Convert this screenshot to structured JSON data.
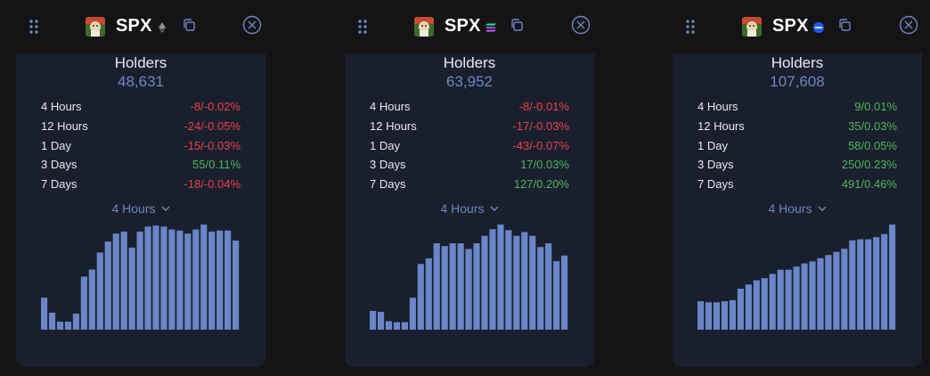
{
  "theme": {
    "accent": "#6e87c2",
    "bar_color": "#6a85c8",
    "negative": "#e8404a",
    "positive": "#49b85a",
    "card_bg": "#1a1f2d"
  },
  "panels": [
    {
      "token": "SPX",
      "chain_icon": "ethereum-icon",
      "title": "Holders",
      "count": "48,631",
      "stats": [
        {
          "label": "4 Hours",
          "value": "-8/-0.02%",
          "trend": "neg"
        },
        {
          "label": "12 Hours",
          "value": "-24/-0.05%",
          "trend": "neg"
        },
        {
          "label": "1 Day",
          "value": "-15/-0.03%",
          "trend": "neg"
        },
        {
          "label": "3 Days",
          "value": "55/0.11%",
          "trend": "pos"
        },
        {
          "label": "7 Days",
          "value": "-18/-0.04%",
          "trend": "neg"
        }
      ],
      "period": "4 Hours"
    },
    {
      "token": "SPX",
      "chain_icon": "solana-icon",
      "title": "Holders",
      "count": "63,952",
      "stats": [
        {
          "label": "4 Hours",
          "value": "-8/-0.01%",
          "trend": "neg"
        },
        {
          "label": "12 Hours",
          "value": "-17/-0.03%",
          "trend": "neg"
        },
        {
          "label": "1 Day",
          "value": "-43/-0.07%",
          "trend": "neg"
        },
        {
          "label": "3 Days",
          "value": "17/0.03%",
          "trend": "pos"
        },
        {
          "label": "7 Days",
          "value": "127/0.20%",
          "trend": "pos"
        }
      ],
      "period": "4 Hours"
    },
    {
      "token": "SPX",
      "chain_icon": "base-icon",
      "title": "Holders",
      "count": "107,608",
      "stats": [
        {
          "label": "4 Hours",
          "value": "9/0.01%",
          "trend": "pos"
        },
        {
          "label": "12 Hours",
          "value": "35/0.03%",
          "trend": "pos"
        },
        {
          "label": "1 Day",
          "value": "58/0.05%",
          "trend": "pos"
        },
        {
          "label": "3 Days",
          "value": "250/0.23%",
          "trend": "pos"
        },
        {
          "label": "7 Days",
          "value": "491/0.46%",
          "trend": "pos"
        }
      ],
      "period": "4 Hours"
    }
  ],
  "chart_data": [
    {
      "type": "bar",
      "values": [
        0.32,
        0.17,
        0.08,
        0.08,
        0.16,
        0.53,
        0.6,
        0.77,
        0.88,
        0.96,
        0.98,
        0.82,
        0.98,
        1.03,
        1.04,
        1.03,
        1.0,
        0.99,
        0.96,
        1.0,
        1.05,
        0.98,
        0.99,
        0.99,
        0.89
      ]
    },
    {
      "type": "bar",
      "values": [
        0.2,
        0.19,
        0.09,
        0.08,
        0.08,
        0.34,
        0.7,
        0.76,
        0.92,
        0.89,
        0.92,
        0.92,
        0.86,
        0.92,
        1.0,
        1.07,
        1.12,
        1.06,
        1.0,
        1.04,
        1.0,
        0.88,
        0.92,
        0.73,
        0.79
      ]
    },
    {
      "type": "bar",
      "values": [
        0.27,
        0.26,
        0.26,
        0.27,
        0.28,
        0.39,
        0.43,
        0.47,
        0.49,
        0.53,
        0.57,
        0.57,
        0.6,
        0.63,
        0.65,
        0.68,
        0.71,
        0.74,
        0.77,
        0.85,
        0.86,
        0.86,
        0.88,
        0.91,
        1.0
      ]
    }
  ]
}
